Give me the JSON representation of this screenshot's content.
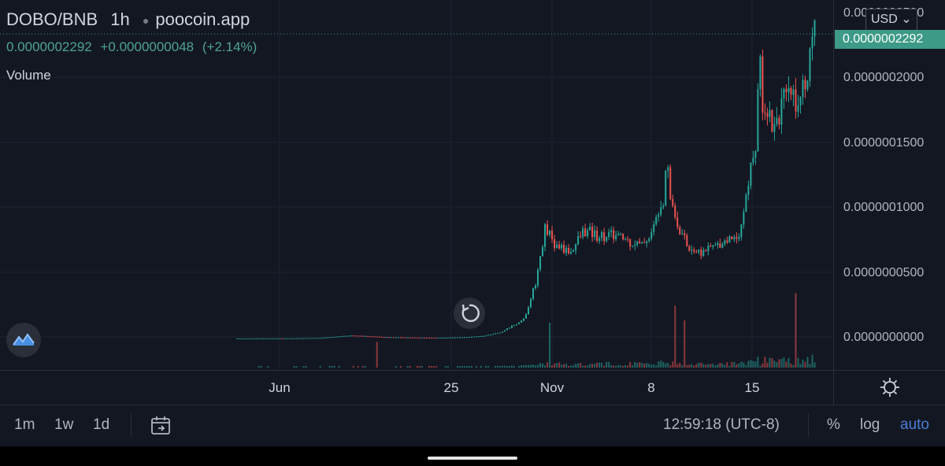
{
  "header": {
    "symbol": "DOBO/BNB",
    "interval": "1h",
    "source": "poocoin.app",
    "price": "0.0000002292",
    "change": "+0.0000000048",
    "change_pct": "(+2.14%)",
    "volume_label": "Volume"
  },
  "price_axis": {
    "currency": "USD",
    "currency_chevron": "⌄",
    "top_label": "0.0000002500",
    "last_price": "0.0000002292",
    "labels": [
      "0.0000002000",
      "0.0000001500",
      "0.0000001000",
      "0.0000000500",
      "0.0000000000"
    ]
  },
  "time_axis": {
    "labels": [
      "Jun",
      "25",
      "Nov",
      "8",
      "15"
    ]
  },
  "toolbar": {
    "range_1m": "1m",
    "range_1w": "1w",
    "range_1d": "1d",
    "time": "12:59:18 (UTC-8)",
    "percent": "%",
    "log": "log",
    "auto": "auto"
  },
  "colors": {
    "background": "#131722",
    "up": "#26a69a",
    "down": "#ef5350",
    "price_tag": "#3d9a87",
    "auto_active": "#4a7fd4"
  },
  "icons": {
    "logo": "tradingview-logo-icon",
    "reset": "reset-chart-icon",
    "date_range": "calendar-goto-icon",
    "settings": "gear-icon"
  },
  "chart_data": {
    "type": "candlestick",
    "series_name": "DOBO/BNB 1h",
    "y_range": [
      0,
      2.5e-07
    ],
    "x_labels": [
      "Jun",
      "25",
      "Nov",
      "8",
      "15"
    ],
    "last_price": 2.292e-07,
    "price_path": [
      [
        0.0,
        0.0
      ],
      [
        0.1,
        1e-10
      ],
      [
        0.15,
        5e-10
      ],
      [
        0.19,
        2e-09
      ],
      [
        0.21,
        2.2e-09
      ],
      [
        0.26,
        1e-09
      ],
      [
        0.35,
        5e-10
      ],
      [
        0.4,
        1e-09
      ],
      [
        0.43,
        2e-09
      ],
      [
        0.46,
        5e-09
      ],
      [
        0.5,
        1.5e-08
      ],
      [
        0.52,
        4.5e-08
      ],
      [
        0.535,
        8.5e-08
      ],
      [
        0.55,
        7e-08
      ],
      [
        0.58,
        6.5e-08
      ],
      [
        0.6,
        8e-08
      ],
      [
        0.66,
        7.7e-08
      ],
      [
        0.7,
        7e-08
      ],
      [
        0.72,
        8e-08
      ],
      [
        0.74,
        1.1e-07
      ],
      [
        0.745,
        1.45e-07
      ],
      [
        0.75,
        1.1e-07
      ],
      [
        0.76,
        9e-08
      ],
      [
        0.78,
        7e-08
      ],
      [
        0.8,
        6.5e-08
      ],
      [
        0.83,
        7e-08
      ],
      [
        0.85,
        7.5e-08
      ],
      [
        0.87,
        8e-08
      ],
      [
        0.88,
        1e-07
      ],
      [
        0.89,
        1.3e-07
      ],
      [
        0.9,
        1.5e-07
      ],
      [
        0.905,
        2.15e-07
      ],
      [
        0.91,
        1.8e-07
      ],
      [
        0.93,
        1.6e-07
      ],
      [
        0.94,
        1.75e-07
      ],
      [
        0.96,
        1.85e-07
      ],
      [
        0.98,
        1.85e-07
      ],
      [
        0.99,
        2.1e-07
      ],
      [
        1.0,
        2.292e-07
      ]
    ]
  }
}
